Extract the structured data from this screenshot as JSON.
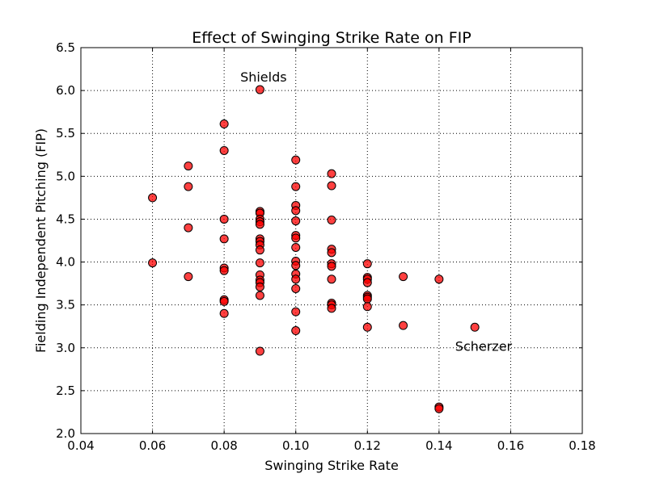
{
  "chart_data": {
    "type": "scatter",
    "title": "Effect of Swinging Strike Rate on FIP",
    "xlabel": "Swinging Strike Rate",
    "ylabel": "Fielding Independent Pitching (FIP)",
    "xlim": [
      0.04,
      0.18
    ],
    "ylim": [
      2.0,
      6.5
    ],
    "xticks": [
      "0.04",
      "0.06",
      "0.08",
      "0.10",
      "0.12",
      "0.14",
      "0.16",
      "0.18"
    ],
    "yticks": [
      "2.0",
      "2.5",
      "3.0",
      "3.5",
      "4.0",
      "4.5",
      "5.0",
      "5.5",
      "6.0",
      "6.5"
    ],
    "grid": true,
    "marker_color": "#ff0000",
    "marker_alpha": 0.75,
    "series": [
      {
        "points": [
          [
            0.06,
            4.75
          ],
          [
            0.06,
            3.99
          ],
          [
            0.07,
            5.12
          ],
          [
            0.07,
            4.88
          ],
          [
            0.07,
            4.4
          ],
          [
            0.07,
            3.83
          ],
          [
            0.08,
            5.61
          ],
          [
            0.08,
            5.3
          ],
          [
            0.08,
            4.5
          ],
          [
            0.08,
            4.27
          ],
          [
            0.08,
            3.93
          ],
          [
            0.08,
            3.9
          ],
          [
            0.08,
            3.56
          ],
          [
            0.08,
            3.54
          ],
          [
            0.08,
            3.4
          ],
          [
            0.09,
            6.01
          ],
          [
            0.09,
            4.59
          ],
          [
            0.09,
            4.57
          ],
          [
            0.09,
            4.5
          ],
          [
            0.09,
            4.47
          ],
          [
            0.09,
            4.44
          ],
          [
            0.09,
            4.27
          ],
          [
            0.09,
            4.24
          ],
          [
            0.09,
            4.2
          ],
          [
            0.09,
            4.14
          ],
          [
            0.09,
            3.99
          ],
          [
            0.09,
            3.85
          ],
          [
            0.09,
            3.79
          ],
          [
            0.09,
            3.76
          ],
          [
            0.09,
            3.71
          ],
          [
            0.09,
            3.61
          ],
          [
            0.09,
            2.96
          ],
          [
            0.1,
            5.19
          ],
          [
            0.1,
            4.88
          ],
          [
            0.1,
            4.66
          ],
          [
            0.1,
            4.6
          ],
          [
            0.1,
            4.48
          ],
          [
            0.1,
            4.31
          ],
          [
            0.1,
            4.28
          ],
          [
            0.1,
            4.17
          ],
          [
            0.1,
            4.01
          ],
          [
            0.1,
            3.96
          ],
          [
            0.1,
            3.86
          ],
          [
            0.1,
            3.8
          ],
          [
            0.1,
            3.69
          ],
          [
            0.1,
            3.42
          ],
          [
            0.1,
            3.2
          ],
          [
            0.11,
            5.03
          ],
          [
            0.11,
            4.89
          ],
          [
            0.11,
            4.49
          ],
          [
            0.11,
            4.15
          ],
          [
            0.11,
            4.11
          ],
          [
            0.11,
            3.98
          ],
          [
            0.11,
            3.95
          ],
          [
            0.11,
            3.8
          ],
          [
            0.11,
            3.52
          ],
          [
            0.11,
            3.5
          ],
          [
            0.11,
            3.46
          ],
          [
            0.12,
            3.98
          ],
          [
            0.12,
            3.82
          ],
          [
            0.12,
            3.8
          ],
          [
            0.12,
            3.76
          ],
          [
            0.12,
            3.61
          ],
          [
            0.12,
            3.59
          ],
          [
            0.12,
            3.57
          ],
          [
            0.12,
            3.48
          ],
          [
            0.12,
            3.24
          ],
          [
            0.13,
            3.83
          ],
          [
            0.13,
            3.26
          ],
          [
            0.14,
            3.8
          ],
          [
            0.14,
            2.31
          ],
          [
            0.14,
            2.29
          ],
          [
            0.15,
            3.24
          ]
        ]
      }
    ],
    "annotations": [
      {
        "text": "Shields",
        "x": 0.0845,
        "y": 6.15
      },
      {
        "text": "Scherzer",
        "x": 0.1445,
        "y": 3.01
      }
    ]
  }
}
